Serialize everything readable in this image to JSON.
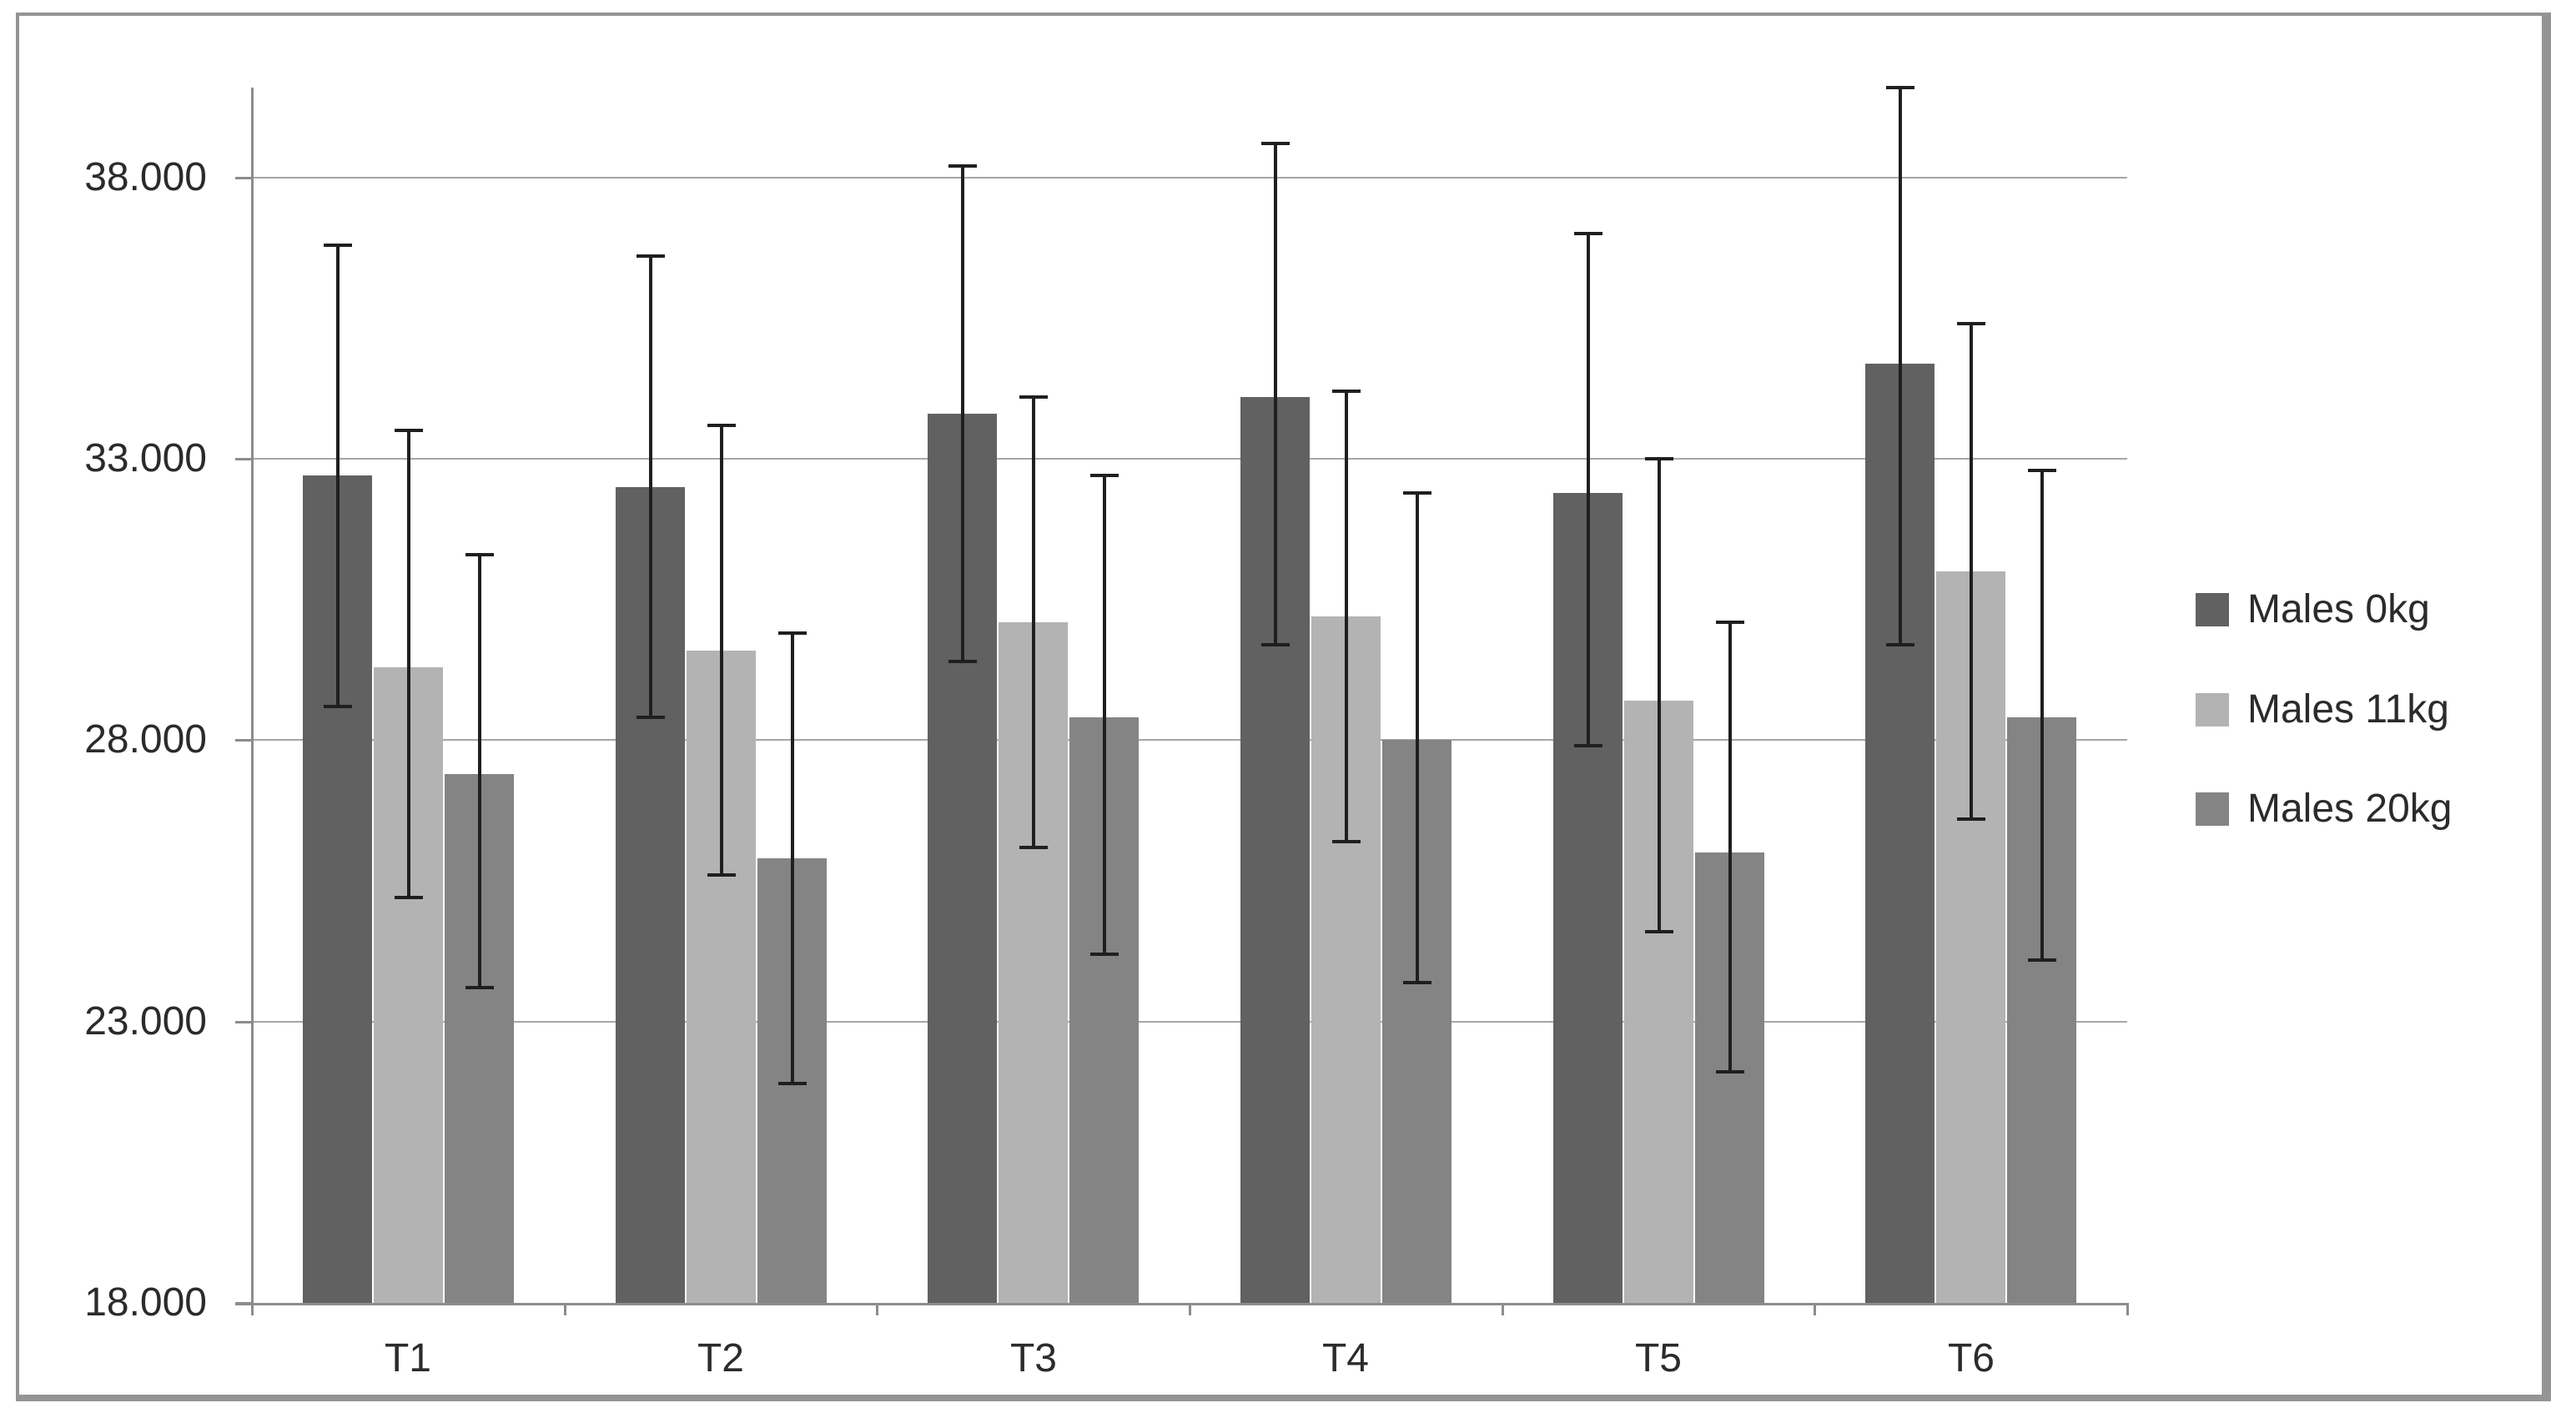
{
  "chart_data": {
    "type": "bar",
    "title": "",
    "xlabel": "",
    "ylabel": "",
    "grid": true,
    "error_bars": true,
    "legend_position": "right",
    "categories": [
      "T1",
      "T2",
      "T3",
      "T4",
      "T5",
      "T6"
    ],
    "series": [
      {
        "name": "Males 0kg",
        "color": "#616161",
        "values": [
          32700,
          32500,
          33800,
          34100,
          32400,
          34700
        ],
        "error_low": [
          28600,
          28400,
          29400,
          29700,
          27900,
          29700
        ],
        "error_high": [
          36800,
          36600,
          38200,
          38600,
          37000,
          39600
        ]
      },
      {
        "name": "Males 11kg",
        "color": "#b3b3b3",
        "values": [
          29300,
          29600,
          30100,
          30200,
          28700,
          31000
        ],
        "error_low": [
          25200,
          25600,
          26100,
          26200,
          24600,
          26600
        ],
        "error_high": [
          33500,
          33600,
          34100,
          34200,
          33000,
          35400
        ]
      },
      {
        "name": "Males 20kg",
        "color": "#848484",
        "values": [
          27400,
          25900,
          28400,
          28000,
          26000,
          28400
        ],
        "error_low": [
          23600,
          21900,
          24200,
          23700,
          22100,
          24100
        ],
        "error_high": [
          31300,
          29900,
          32700,
          32400,
          30100,
          32800
        ]
      }
    ],
    "y_axis": {
      "min": 18000,
      "max_tick": 38000,
      "tick_interval": 5000,
      "tick_values": [
        18000,
        23000,
        28000,
        33000,
        38000
      ],
      "tick_labels": [
        "18.000",
        "23.000",
        "28.000",
        "33.000",
        "38.000"
      ]
    },
    "style": {
      "error_bar_color": "#1f1f1f",
      "gridline_color": "#a6a6a6",
      "axis_color": "#8c8c8c",
      "frame_border_color": "#949494",
      "background": "#ffffff"
    }
  }
}
